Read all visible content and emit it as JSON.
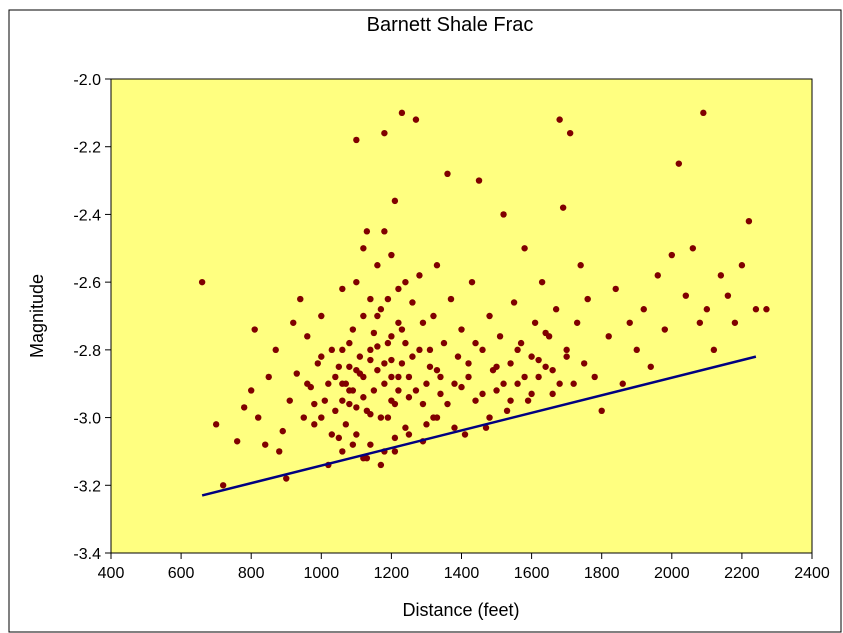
{
  "chart_data": {
    "type": "scatter",
    "title": "Barnett Shale Frac",
    "xlabel": "Distance (feet)",
    "ylabel": "Magnitude",
    "xlim": [
      400,
      2400
    ],
    "ylim": [
      -3.4,
      -2.0
    ],
    "x_ticks": [
      400,
      600,
      800,
      1000,
      1200,
      1400,
      1600,
      1800,
      2000,
      2200,
      2400
    ],
    "y_ticks": [
      -3.4,
      -3.2,
      -3.0,
      -2.8,
      -2.6,
      -2.4,
      -2.2,
      -2.0
    ],
    "x_tick_labels": [
      "400",
      "600",
      "800",
      "1000",
      "1200",
      "1400",
      "1600",
      "1800",
      "2000",
      "2200",
      "2400"
    ],
    "y_tick_labels": [
      "-3.4",
      "-3.2",
      "-3.0",
      "-2.8",
      "-2.6",
      "-2.4",
      "-2.2",
      "-2.0"
    ],
    "grid": false,
    "legend": "none",
    "colors": {
      "plot_background": "#ffff80",
      "points": "#800000",
      "line": "#000080",
      "frame": "#000000"
    },
    "series": [
      {
        "kind": "points",
        "points": [
          [
            660,
            -2.6
          ],
          [
            700,
            -3.02
          ],
          [
            720,
            -3.2
          ],
          [
            760,
            -3.07
          ],
          [
            780,
            -2.97
          ],
          [
            800,
            -2.92
          ],
          [
            810,
            -2.74
          ],
          [
            820,
            -3.0
          ],
          [
            840,
            -3.08
          ],
          [
            850,
            -2.88
          ],
          [
            870,
            -2.8
          ],
          [
            880,
            -3.1
          ],
          [
            890,
            -3.04
          ],
          [
            900,
            -3.18
          ],
          [
            910,
            -2.95
          ],
          [
            920,
            -2.72
          ],
          [
            930,
            -2.87
          ],
          [
            940,
            -2.65
          ],
          [
            950,
            -3.0
          ],
          [
            960,
            -2.76
          ],
          [
            970,
            -2.91
          ],
          [
            980,
            -3.02
          ],
          [
            990,
            -2.84
          ],
          [
            1000,
            -2.7
          ],
          [
            1010,
            -2.95
          ],
          [
            1020,
            -3.14
          ],
          [
            1030,
            -2.8
          ],
          [
            1040,
            -2.88
          ],
          [
            1050,
            -3.06
          ],
          [
            1060,
            -2.62
          ],
          [
            1070,
            -2.9
          ],
          [
            1080,
            -2.96
          ],
          [
            1090,
            -2.74
          ],
          [
            1100,
            -2.18
          ],
          [
            1110,
            -2.87
          ],
          [
            1120,
            -3.12
          ],
          [
            1130,
            -2.45
          ],
          [
            1140,
            -2.8
          ],
          [
            1150,
            -2.92
          ],
          [
            1160,
            -2.55
          ],
          [
            1170,
            -2.68
          ],
          [
            1180,
            -2.16
          ],
          [
            1190,
            -3.0
          ],
          [
            1200,
            -2.76
          ],
          [
            1210,
            -2.36
          ],
          [
            1220,
            -2.88
          ],
          [
            1230,
            -2.1
          ],
          [
            1240,
            -2.6
          ],
          [
            1250,
            -2.94
          ],
          [
            1260,
            -2.82
          ],
          [
            1270,
            -2.12
          ],
          [
            1280,
            -2.58
          ],
          [
            1290,
            -2.72
          ],
          [
            1300,
            -3.02
          ],
          [
            1310,
            -2.85
          ],
          [
            1320,
            -2.7
          ],
          [
            1330,
            -2.55
          ],
          [
            1340,
            -2.93
          ],
          [
            1350,
            -2.78
          ],
          [
            1360,
            -2.28
          ],
          [
            1370,
            -2.65
          ],
          [
            1380,
            -2.9
          ],
          [
            1390,
            -2.82
          ],
          [
            1400,
            -2.74
          ],
          [
            1410,
            -3.05
          ],
          [
            1420,
            -2.88
          ],
          [
            1430,
            -2.6
          ],
          [
            1440,
            -2.95
          ],
          [
            1450,
            -2.3
          ],
          [
            1460,
            -2.8
          ],
          [
            1470,
            -3.03
          ],
          [
            1480,
            -2.7
          ],
          [
            1490,
            -2.86
          ],
          [
            1500,
            -2.92
          ],
          [
            1510,
            -2.76
          ],
          [
            1520,
            -2.4
          ],
          [
            1530,
            -2.98
          ],
          [
            1540,
            -2.84
          ],
          [
            1550,
            -2.66
          ],
          [
            1560,
            -2.9
          ],
          [
            1570,
            -2.78
          ],
          [
            1580,
            -2.5
          ],
          [
            1590,
            -2.95
          ],
          [
            1600,
            -2.82
          ],
          [
            1610,
            -2.72
          ],
          [
            1620,
            -2.88
          ],
          [
            1630,
            -2.6
          ],
          [
            1640,
            -2.85
          ],
          [
            1650,
            -2.76
          ],
          [
            1660,
            -2.93
          ],
          [
            1670,
            -2.68
          ],
          [
            1680,
            -2.12
          ],
          [
            1690,
            -2.38
          ],
          [
            1700,
            -2.8
          ],
          [
            1710,
            -2.16
          ],
          [
            1720,
            -2.9
          ],
          [
            1730,
            -2.72
          ],
          [
            1740,
            -2.55
          ],
          [
            1750,
            -2.84
          ],
          [
            1760,
            -2.65
          ],
          [
            1780,
            -2.88
          ],
          [
            1800,
            -2.98
          ],
          [
            1820,
            -2.76
          ],
          [
            1840,
            -2.62
          ],
          [
            1860,
            -2.9
          ],
          [
            1880,
            -2.72
          ],
          [
            1900,
            -2.8
          ],
          [
            1920,
            -2.68
          ],
          [
            1940,
            -2.85
          ],
          [
            1960,
            -2.58
          ],
          [
            1980,
            -2.74
          ],
          [
            2000,
            -2.52
          ],
          [
            2020,
            -2.25
          ],
          [
            2040,
            -2.64
          ],
          [
            2060,
            -2.5
          ],
          [
            2080,
            -2.72
          ],
          [
            2090,
            -2.1
          ],
          [
            2100,
            -2.68
          ],
          [
            2120,
            -2.8
          ],
          [
            2140,
            -2.58
          ],
          [
            2160,
            -2.64
          ],
          [
            2180,
            -2.72
          ],
          [
            2200,
            -2.55
          ],
          [
            2220,
            -2.42
          ],
          [
            2240,
            -2.68
          ],
          [
            2270,
            -2.68
          ],
          [
            1050,
            -2.85
          ],
          [
            1060,
            -2.95
          ],
          [
            1070,
            -3.02
          ],
          [
            1080,
            -2.78
          ],
          [
            1090,
            -2.92
          ],
          [
            1100,
            -3.05
          ],
          [
            1110,
            -2.82
          ],
          [
            1120,
            -2.7
          ],
          [
            1130,
            -2.98
          ],
          [
            1140,
            -3.08
          ],
          [
            1150,
            -2.75
          ],
          [
            1160,
            -2.86
          ],
          [
            1170,
            -3.0
          ],
          [
            1180,
            -2.9
          ],
          [
            1190,
            -2.65
          ],
          [
            1200,
            -2.95
          ],
          [
            1210,
            -3.06
          ],
          [
            1220,
            -2.72
          ],
          [
            1230,
            -2.84
          ],
          [
            1240,
            -3.03
          ],
          [
            1060,
            -2.9
          ],
          [
            1080,
            -2.85
          ],
          [
            1100,
            -2.97
          ],
          [
            1120,
            -2.88
          ],
          [
            1140,
            -2.83
          ],
          [
            1160,
            -2.79
          ],
          [
            1180,
            -3.1
          ],
          [
            1200,
            -2.88
          ],
          [
            1220,
            -2.92
          ],
          [
            1240,
            -2.78
          ],
          [
            1100,
            -2.6
          ],
          [
            1120,
            -2.5
          ],
          [
            1140,
            -2.65
          ],
          [
            1160,
            -2.7
          ],
          [
            1180,
            -2.45
          ],
          [
            1200,
            -2.52
          ],
          [
            1220,
            -2.62
          ],
          [
            1260,
            -2.66
          ],
          [
            1280,
            -2.8
          ],
          [
            1300,
            -2.9
          ],
          [
            1320,
            -3.0
          ],
          [
            1340,
            -2.88
          ],
          [
            1360,
            -2.96
          ],
          [
            1380,
            -3.03
          ],
          [
            1400,
            -2.91
          ],
          [
            1420,
            -2.84
          ],
          [
            1440,
            -2.78
          ],
          [
            1460,
            -2.93
          ],
          [
            1480,
            -3.0
          ],
          [
            1500,
            -2.85
          ],
          [
            960,
            -2.9
          ],
          [
            980,
            -2.96
          ],
          [
            1000,
            -2.82
          ],
          [
            1020,
            -2.9
          ],
          [
            1040,
            -2.98
          ],
          [
            1060,
            -2.8
          ],
          [
            1080,
            -2.92
          ],
          [
            1100,
            -2.86
          ],
          [
            1120,
            -2.94
          ],
          [
            1140,
            -2.99
          ],
          [
            1520,
            -2.9
          ],
          [
            1540,
            -2.95
          ],
          [
            1560,
            -2.8
          ],
          [
            1580,
            -2.88
          ],
          [
            1600,
            -2.93
          ],
          [
            1620,
            -2.83
          ],
          [
            1640,
            -2.75
          ],
          [
            1660,
            -2.86
          ],
          [
            1680,
            -2.9
          ],
          [
            1700,
            -2.82
          ],
          [
            1180,
            -2.84
          ],
          [
            1190,
            -2.78
          ],
          [
            1200,
            -2.83
          ],
          [
            1210,
            -2.96
          ],
          [
            1230,
            -2.74
          ],
          [
            1250,
            -2.88
          ],
          [
            1270,
            -2.92
          ],
          [
            1290,
            -2.96
          ],
          [
            1310,
            -2.8
          ],
          [
            1330,
            -2.86
          ],
          [
            1000,
            -3.0
          ],
          [
            1030,
            -3.05
          ],
          [
            1060,
            -3.1
          ],
          [
            1090,
            -3.08
          ],
          [
            1130,
            -3.12
          ],
          [
            1170,
            -3.14
          ],
          [
            1210,
            -3.1
          ],
          [
            1250,
            -3.05
          ],
          [
            1290,
            -3.07
          ],
          [
            1330,
            -3.0
          ]
        ]
      },
      {
        "kind": "line",
        "points": [
          [
            660,
            -3.23
          ],
          [
            2240,
            -2.82
          ]
        ]
      }
    ]
  }
}
